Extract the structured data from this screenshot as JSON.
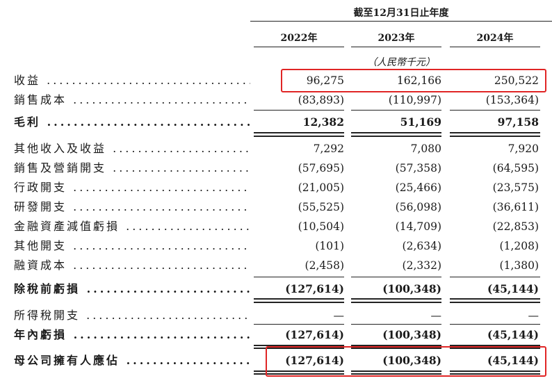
{
  "header": {
    "period": "截至12月31日止年度",
    "years": [
      "2022年",
      "2023年",
      "2024年"
    ],
    "unit": "（人民幣千元）"
  },
  "rows": [
    {
      "label": "收益",
      "values": [
        "96,275",
        "162,166",
        "250,522"
      ]
    },
    {
      "label": "銷售成本",
      "values": [
        "(83,893)",
        "(110,997)",
        "(153,364)"
      ]
    },
    {
      "label": "毛利",
      "values": [
        "12,382",
        "51,169",
        "97,158"
      ]
    },
    {
      "label": "其他收入及收益",
      "values": [
        "7,292",
        "7,080",
        "7,920"
      ]
    },
    {
      "label": "銷售及營銷開支",
      "values": [
        "(57,695)",
        "(57,358)",
        "(64,595)"
      ]
    },
    {
      "label": "行政開支",
      "values": [
        "(21,005)",
        "(25,466)",
        "(23,575)"
      ]
    },
    {
      "label": "研發開支",
      "values": [
        "(55,525)",
        "(56,098)",
        "(36,611)"
      ]
    },
    {
      "label": "金融資產減值虧損",
      "values": [
        "(10,504)",
        "(14,709)",
        "(22,853)"
      ]
    },
    {
      "label": "其他開支",
      "values": [
        "(101)",
        "(2,634)",
        "(1,208)"
      ]
    },
    {
      "label": "融資成本",
      "values": [
        "(2,458)",
        "(2,332)",
        "(1,380)"
      ]
    },
    {
      "label": "除稅前虧損",
      "values": [
        "(127,614)",
        "(100,348)",
        "(45,144)"
      ]
    },
    {
      "label": "所得稅開支",
      "values": [
        "—",
        "—",
        "—"
      ]
    },
    {
      "label": "年內虧損",
      "values": [
        "(127,614)",
        "(100,348)",
        "(45,144)"
      ]
    },
    {
      "label": "母公司擁有人應佔",
      "values": [
        "(127,614)",
        "(100,348)",
        "(45,144)"
      ]
    }
  ],
  "colors": {
    "highlight": "#e02525",
    "text": "#1a1a1a"
  }
}
